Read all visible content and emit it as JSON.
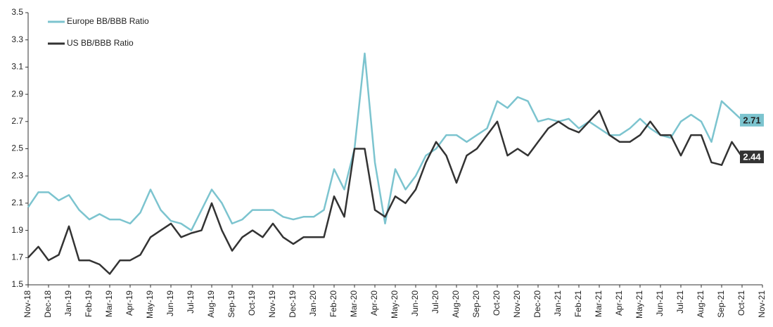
{
  "chart_data": {
    "type": "line",
    "categories": [
      "Nov-18",
      null,
      "Dec-18",
      null,
      "Jan-19",
      null,
      "Feb-19",
      null,
      "Mar-19",
      null,
      "Apr-19",
      null,
      "May-19",
      null,
      "Jun-19",
      null,
      "Jul-19",
      null,
      "Aug-19",
      null,
      "Sep-19",
      null,
      "Oct-19",
      null,
      "Nov-19",
      null,
      "Dec-19",
      null,
      "Jan-20",
      null,
      "Feb-20",
      null,
      "Mar-20",
      null,
      "Apr-20",
      null,
      "May-20",
      null,
      "Jun-20",
      null,
      "Jul-20",
      null,
      "Aug-20",
      null,
      "Sep-20",
      null,
      "Oct-20",
      null,
      "Nov-20",
      null,
      "Dec-20",
      null,
      "Jan-21",
      null,
      "Feb-21",
      null,
      "Mar-21",
      null,
      "Apr-21",
      null,
      "May-21",
      null,
      "Jun-21",
      null,
      "Jul-21",
      null,
      "Aug-21",
      null,
      "Sep-21",
      null,
      "Oct-21",
      null,
      "Nov-21"
    ],
    "series": [
      {
        "name": "Europe BB/BBB Ratio",
        "color": "#7cc4cf",
        "values": [
          2.07,
          2.18,
          2.18,
          2.12,
          2.16,
          2.05,
          1.98,
          2.02,
          1.98,
          1.98,
          1.95,
          2.03,
          2.2,
          2.05,
          1.97,
          1.95,
          1.9,
          2.05,
          2.2,
          2.1,
          1.95,
          1.98,
          2.05,
          2.05,
          2.05,
          2.0,
          1.98,
          2.0,
          2.0,
          2.05,
          2.35,
          2.2,
          2.5,
          3.2,
          2.4,
          1.95,
          2.35,
          2.2,
          2.3,
          2.45,
          2.5,
          2.6,
          2.6,
          2.55,
          2.6,
          2.65,
          2.85,
          2.8,
          2.88,
          2.85,
          2.7,
          2.72,
          2.7,
          2.72,
          2.65,
          2.7,
          2.65,
          2.6,
          2.6,
          2.65,
          2.72,
          2.65,
          2.6,
          2.58,
          2.7,
          2.75,
          2.7,
          2.55,
          2.85,
          2.78,
          2.71,
          null,
          null
        ]
      },
      {
        "name": "US BB/BBB Ratio",
        "color": "#333333",
        "values": [
          1.7,
          1.78,
          1.68,
          1.72,
          1.93,
          1.68,
          1.68,
          1.65,
          1.58,
          1.68,
          1.68,
          1.72,
          1.85,
          1.9,
          1.95,
          1.85,
          1.88,
          1.9,
          2.1,
          1.9,
          1.75,
          1.85,
          1.9,
          1.85,
          1.95,
          1.85,
          1.8,
          1.85,
          1.85,
          1.85,
          2.15,
          2.0,
          2.5,
          2.5,
          2.05,
          2.0,
          2.15,
          2.1,
          2.2,
          2.4,
          2.55,
          2.45,
          2.25,
          2.45,
          2.5,
          2.6,
          2.7,
          2.45,
          2.5,
          2.45,
          2.55,
          2.65,
          2.7,
          2.65,
          2.62,
          2.7,
          2.78,
          2.6,
          2.55,
          2.55,
          2.6,
          2.7,
          2.6,
          2.6,
          2.45,
          2.6,
          2.6,
          2.4,
          2.38,
          2.55,
          2.44,
          null,
          null
        ]
      }
    ],
    "annotations": [
      {
        "label": "2.71",
        "value": 2.71
      },
      {
        "label": "2.44",
        "value": 2.44
      }
    ],
    "ylim": [
      1.5,
      3.5
    ],
    "yticks": [
      1.5,
      1.7,
      1.9,
      2.1,
      2.3,
      2.5,
      2.7,
      2.9,
      3.1,
      3.3,
      3.5
    ],
    "legend": "upper left"
  }
}
